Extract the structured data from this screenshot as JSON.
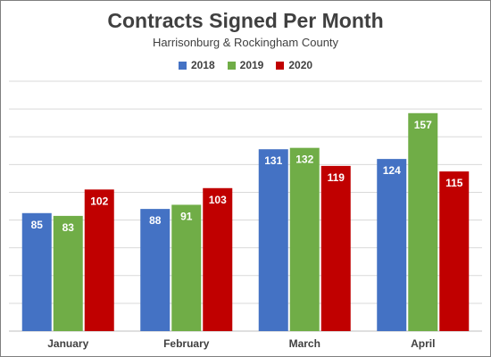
{
  "chart_data": {
    "type": "bar",
    "title": "Contracts Signed Per Month",
    "subtitle": "Harrisonburg & Rockingham County",
    "categories": [
      "January",
      "February",
      "March",
      "April"
    ],
    "series": [
      {
        "name": "2018",
        "color": "#4472c4",
        "values": [
          85,
          88,
          131,
          124
        ]
      },
      {
        "name": "2019",
        "color": "#70ad47",
        "values": [
          83,
          91,
          132,
          157
        ]
      },
      {
        "name": "2020",
        "color": "#c00000",
        "values": [
          102,
          103,
          119,
          115
        ]
      }
    ],
    "ylim": [
      0,
      180
    ],
    "grid": true,
    "legend_position": "top",
    "data_labels": true,
    "y_axis_labels_shown": false
  }
}
